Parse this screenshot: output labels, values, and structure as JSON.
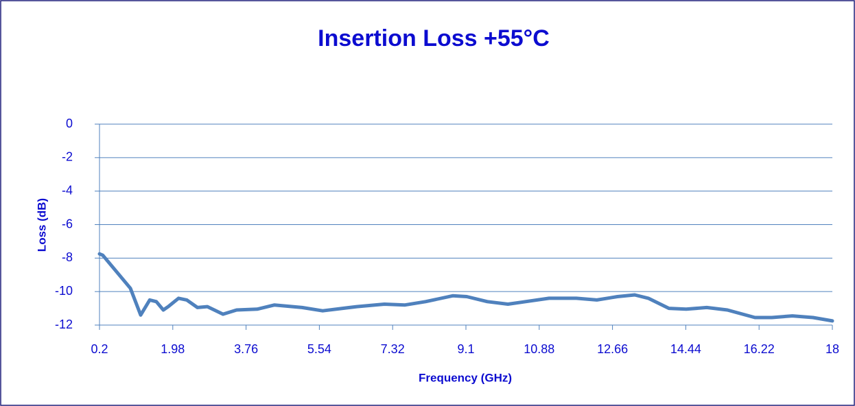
{
  "chart_data": {
    "type": "line",
    "title": "Insertion Loss +55°C",
    "x_label": "Frequency (GHz)",
    "y_label": "Loss (dB)",
    "x": [
      0.2,
      0.28,
      0.95,
      1.2,
      1.42,
      1.58,
      1.75,
      1.87,
      2.12,
      2.32,
      2.58,
      2.82,
      3.2,
      3.53,
      4.03,
      4.45,
      5.12,
      5.62,
      6.45,
      7.12,
      7.62,
      8.12,
      8.78,
      9.12,
      9.62,
      10.12,
      11.12,
      11.78,
      12.28,
      12.78,
      13.2,
      13.53,
      14.03,
      14.45,
      14.95,
      15.45,
      16.12,
      16.53,
      17.03,
      17.53,
      18
    ],
    "series": [
      {
        "name": "Insertion Loss",
        "color": "#4f81bd",
        "values": [
          -7.75,
          -7.83,
          -9.8,
          -11.4,
          -10.5,
          -10.6,
          -11.1,
          -10.9,
          -10.4,
          -10.5,
          -10.95,
          -10.9,
          -11.35,
          -11.1,
          -11.05,
          -10.8,
          -10.95,
          -11.15,
          -10.9,
          -10.75,
          -10.8,
          -10.6,
          -10.25,
          -10.3,
          -10.6,
          -10.75,
          -10.4,
          -10.4,
          -10.5,
          -10.3,
          -10.2,
          -10.4,
          -11,
          -11.05,
          -10.95,
          -11.1,
          -11.55,
          -11.55,
          -11.45,
          -11.55,
          -11.75
        ]
      }
    ],
    "xlim": [
      0.2,
      18
    ],
    "xticks": [
      0.2,
      1.98,
      3.76,
      5.54,
      7.32,
      9.1,
      10.88,
      12.66,
      14.44,
      16.22,
      18
    ],
    "ylim": [
      -12,
      0
    ],
    "yticks": [
      0,
      -2,
      -4,
      -6,
      -8,
      -10,
      -12
    ],
    "grid": true,
    "grid_color": "#4f81bd"
  }
}
